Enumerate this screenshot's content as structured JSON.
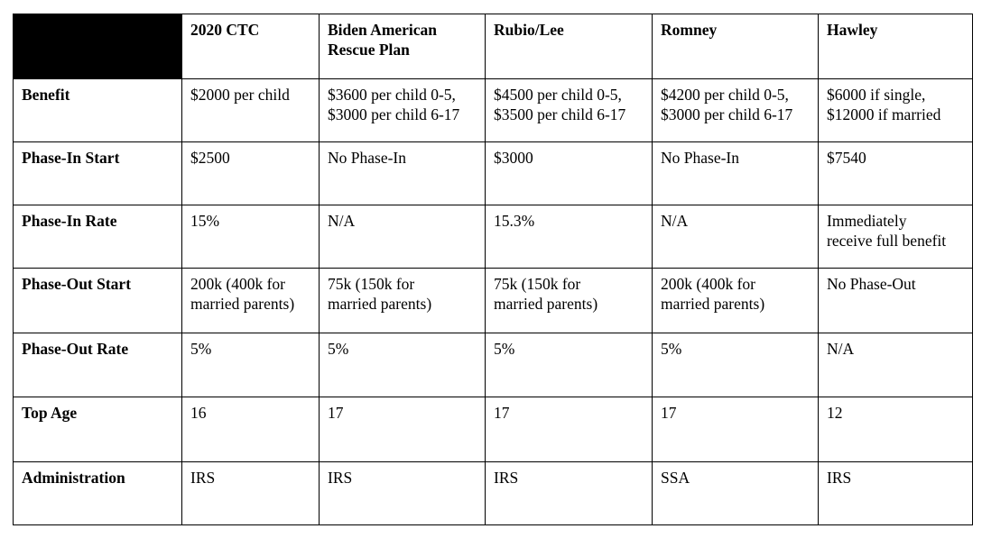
{
  "columns": [
    "2020 CTC",
    "Biden American\nRescue Plan",
    "Rubio/Lee",
    "Romney",
    "Hawley"
  ],
  "rows": [
    {
      "label": "Benefit",
      "cells": [
        "$2000 per child",
        "$3600 per child 0-5,\n$3000 per child 6-17",
        "$4500 per child 0-5,\n$3500 per child 6-17",
        "$4200 per child 0-5,\n$3000 per child 6-17",
        "$6000 if single,\n$12000 if married"
      ]
    },
    {
      "label": "Phase-In Start",
      "cells": [
        "$2500",
        "No Phase-In",
        "$3000",
        "No Phase-In",
        "$7540"
      ]
    },
    {
      "label": "Phase-In Rate",
      "cells": [
        "15%",
        "N/A",
        "15.3%",
        "N/A",
        "Immediately\nreceive full benefit"
      ]
    },
    {
      "label": "Phase-Out Start",
      "cells": [
        "200k (400k for\nmarried parents)",
        "75k (150k for\nmarried parents)",
        "75k (150k for\nmarried parents)",
        "200k (400k for\nmarried parents)",
        "No Phase-Out"
      ]
    },
    {
      "label": "Phase-Out Rate",
      "cells": [
        "5%",
        "5%",
        "5%",
        "5%",
        "N/A"
      ]
    },
    {
      "label": "Top Age",
      "cells": [
        "16",
        "17",
        "17",
        "17",
        "12"
      ]
    },
    {
      "label": "Administration",
      "cells": [
        "IRS",
        "IRS",
        "IRS",
        "SSA",
        "IRS"
      ]
    }
  ]
}
